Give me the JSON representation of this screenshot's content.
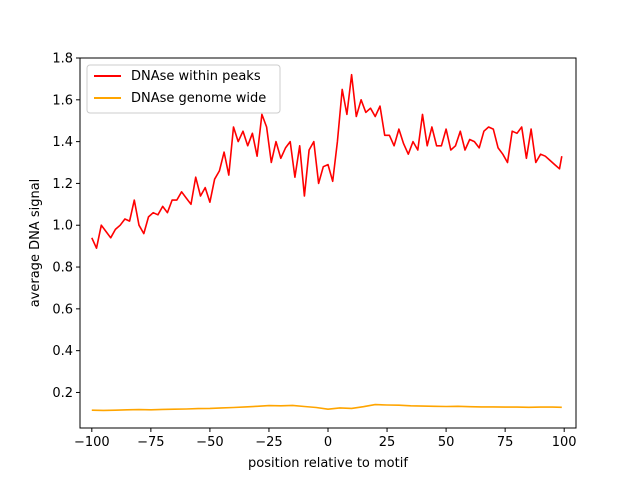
{
  "chart_data": {
    "type": "line",
    "title": "",
    "xlabel": "position relative to motif",
    "ylabel": "average DNA signal",
    "xlim": [
      -105,
      105
    ],
    "ylim": [
      0.03,
      1.8
    ],
    "xticks": [
      -100,
      -75,
      -50,
      -25,
      0,
      25,
      50,
      75,
      100
    ],
    "yticks": [
      0.2,
      0.4,
      0.6,
      0.8,
      1.0,
      1.2,
      1.4,
      1.6,
      1.8
    ],
    "xtick_labels": [
      "−100",
      "−75",
      "−50",
      "−25",
      "0",
      "25",
      "50",
      "75",
      "100"
    ],
    "ytick_labels": [
      "0.2",
      "0.4",
      "0.6",
      "0.8",
      "1.0",
      "1.2",
      "1.4",
      "1.6",
      "1.8"
    ],
    "legend_position": "upper-left",
    "grid": false,
    "series": [
      {
        "name": "DNAse within peaks",
        "color": "#ff0000",
        "x": [
          -100,
          -98,
          -96,
          -94,
          -92,
          -90,
          -88,
          -86,
          -84,
          -82,
          -80,
          -78,
          -76,
          -74,
          -72,
          -70,
          -68,
          -66,
          -64,
          -62,
          -60,
          -58,
          -56,
          -54,
          -52,
          -50,
          -48,
          -46,
          -44,
          -42,
          -40,
          -38,
          -36,
          -34,
          -32,
          -30,
          -28,
          -26,
          -24,
          -22,
          -20,
          -18,
          -16,
          -14,
          -12,
          -10,
          -8,
          -6,
          -4,
          -2,
          0,
          2,
          4,
          6,
          8,
          10,
          12,
          14,
          16,
          18,
          20,
          22,
          24,
          26,
          28,
          30,
          32,
          34,
          36,
          38,
          40,
          42,
          44,
          46,
          48,
          50,
          52,
          54,
          56,
          58,
          60,
          62,
          64,
          66,
          68,
          70,
          72,
          74,
          76,
          78,
          80,
          82,
          84,
          86,
          88,
          90,
          92,
          94,
          96,
          98,
          99
        ],
        "y": [
          0.94,
          0.89,
          1.0,
          0.97,
          0.94,
          0.98,
          1.0,
          1.03,
          1.02,
          1.12,
          1.0,
          0.96,
          1.04,
          1.06,
          1.05,
          1.09,
          1.06,
          1.12,
          1.12,
          1.16,
          1.13,
          1.1,
          1.23,
          1.14,
          1.18,
          1.11,
          1.22,
          1.26,
          1.35,
          1.24,
          1.47,
          1.4,
          1.45,
          1.38,
          1.44,
          1.33,
          1.53,
          1.47,
          1.3,
          1.4,
          1.32,
          1.37,
          1.4,
          1.23,
          1.38,
          1.14,
          1.36,
          1.4,
          1.2,
          1.28,
          1.29,
          1.21,
          1.4,
          1.65,
          1.53,
          1.72,
          1.52,
          1.6,
          1.54,
          1.56,
          1.52,
          1.57,
          1.43,
          1.43,
          1.38,
          1.46,
          1.39,
          1.34,
          1.4,
          1.36,
          1.53,
          1.38,
          1.47,
          1.38,
          1.38,
          1.46,
          1.36,
          1.38,
          1.45,
          1.36,
          1.41,
          1.4,
          1.37,
          1.45,
          1.47,
          1.46,
          1.37,
          1.34,
          1.3,
          1.45,
          1.44,
          1.47,
          1.32,
          1.46,
          1.3,
          1.34,
          1.33,
          1.31,
          1.29,
          1.27,
          1.33
        ]
      },
      {
        "name": "DNAse genome wide",
        "color": "#ffa500",
        "x": [
          -100,
          -95,
          -90,
          -85,
          -80,
          -75,
          -70,
          -65,
          -60,
          -55,
          -50,
          -45,
          -40,
          -35,
          -30,
          -25,
          -20,
          -15,
          -10,
          -5,
          0,
          5,
          10,
          15,
          20,
          25,
          30,
          35,
          40,
          45,
          50,
          55,
          60,
          65,
          70,
          75,
          80,
          85,
          90,
          95,
          99
        ],
        "y": [
          0.115,
          0.114,
          0.115,
          0.117,
          0.118,
          0.117,
          0.119,
          0.12,
          0.121,
          0.123,
          0.124,
          0.126,
          0.128,
          0.131,
          0.134,
          0.137,
          0.136,
          0.138,
          0.133,
          0.128,
          0.12,
          0.126,
          0.124,
          0.132,
          0.142,
          0.14,
          0.139,
          0.136,
          0.135,
          0.134,
          0.133,
          0.134,
          0.132,
          0.131,
          0.131,
          0.13,
          0.13,
          0.129,
          0.13,
          0.13,
          0.129
        ]
      }
    ]
  }
}
